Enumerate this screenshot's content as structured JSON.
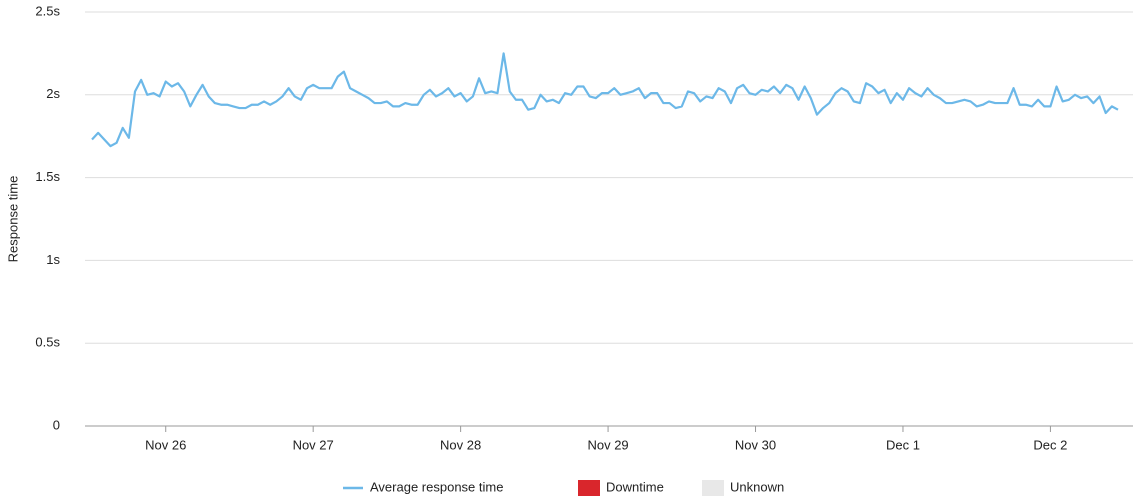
{
  "chart_data": {
    "type": "line",
    "y_label": "Response time",
    "categories": [
      null,
      null,
      null,
      null,
      null,
      null,
      null,
      null,
      null,
      null,
      null,
      null,
      "Nov 26",
      null,
      null,
      null,
      null,
      null,
      null,
      null,
      null,
      null,
      null,
      null,
      null,
      null,
      null,
      null,
      null,
      null,
      null,
      null,
      null,
      null,
      null,
      null,
      "Nov 27",
      null,
      null,
      null,
      null,
      null,
      null,
      null,
      null,
      null,
      null,
      null,
      null,
      null,
      null,
      null,
      null,
      null,
      null,
      null,
      null,
      null,
      null,
      null,
      "Nov 28",
      null,
      null,
      null,
      null,
      null,
      null,
      null,
      null,
      null,
      null,
      null,
      null,
      null,
      null,
      null,
      null,
      null,
      null,
      null,
      null,
      null,
      null,
      null,
      "Nov 29",
      null,
      null,
      null,
      null,
      null,
      null,
      null,
      null,
      null,
      null,
      null,
      null,
      null,
      null,
      null,
      null,
      null,
      null,
      null,
      null,
      null,
      null,
      null,
      "Nov 30",
      null,
      null,
      null,
      null,
      null,
      null,
      null,
      null,
      null,
      null,
      null,
      null,
      null,
      null,
      null,
      null,
      null,
      null,
      null,
      null,
      null,
      null,
      null,
      "Dec 1",
      null,
      null,
      null,
      null,
      null,
      null,
      null,
      null,
      null,
      null,
      null,
      null,
      null,
      null,
      null,
      null,
      null,
      null,
      null,
      null,
      null,
      null,
      null,
      "Dec 2",
      null,
      null,
      null,
      null,
      null,
      null,
      null,
      null,
      null,
      null,
      null
    ],
    "series": [
      {
        "name": "Average response time",
        "color": "#6cb8e8",
        "values": [
          1.73,
          1.77,
          1.73,
          1.69,
          1.71,
          1.8,
          1.74,
          2.02,
          2.09,
          2.0,
          2.01,
          1.99,
          2.08,
          2.05,
          2.07,
          2.02,
          1.93,
          2.0,
          2.06,
          1.99,
          1.95,
          1.94,
          1.94,
          1.93,
          1.92,
          1.92,
          1.94,
          1.94,
          1.96,
          1.94,
          1.96,
          1.99,
          2.04,
          1.99,
          1.97,
          2.04,
          2.06,
          2.04,
          2.04,
          2.04,
          2.11,
          2.14,
          2.04,
          2.02,
          2.0,
          1.98,
          1.95,
          1.95,
          1.96,
          1.93,
          1.93,
          1.95,
          1.94,
          1.94,
          2.0,
          2.03,
          1.99,
          2.01,
          2.04,
          1.99,
          2.01,
          1.96,
          1.99,
          2.1,
          2.01,
          2.02,
          2.01,
          2.25,
          2.02,
          1.97,
          1.97,
          1.91,
          1.92,
          2.0,
          1.96,
          1.97,
          1.95,
          2.01,
          2.0,
          2.05,
          2.05,
          1.99,
          1.98,
          2.01,
          2.01,
          2.04,
          2.0,
          2.01,
          2.02,
          2.04,
          1.98,
          2.01,
          2.01,
          1.95,
          1.95,
          1.92,
          1.93,
          2.02,
          2.01,
          1.96,
          1.99,
          1.98,
          2.04,
          2.02,
          1.95,
          2.04,
          2.06,
          2.01,
          2.0,
          2.03,
          2.02,
          2.05,
          2.01,
          2.06,
          2.04,
          1.97,
          2.05,
          1.98,
          1.88,
          1.92,
          1.95,
          2.01,
          2.04,
          2.02,
          1.96,
          1.95,
          2.07,
          2.05,
          2.01,
          2.03,
          1.95,
          2.01,
          1.97,
          2.04,
          2.01,
          1.99,
          2.04,
          2.0,
          1.98,
          1.95,
          1.95,
          1.96,
          1.97,
          1.96,
          1.93,
          1.94,
          1.96,
          1.95,
          1.95,
          1.95,
          2.04,
          1.94,
          1.94,
          1.93,
          1.97,
          1.93,
          1.93,
          2.05,
          1.96,
          1.97,
          2.0,
          1.98,
          1.99,
          1.95,
          1.99,
          1.89,
          1.93,
          1.91
        ]
      }
    ],
    "legend_items": [
      {
        "name": "Downtime",
        "color": "#d9262c"
      },
      {
        "name": "Unknown",
        "color": "#e8e8e8"
      }
    ],
    "ylim": [
      0,
      2.5
    ],
    "yticks": [
      {
        "value": 0,
        "label": "0"
      },
      {
        "value": 0.5,
        "label": "0.5s"
      },
      {
        "value": 1,
        "label": "1s"
      },
      {
        "value": 1.5,
        "label": "1.5s"
      },
      {
        "value": 2,
        "label": "2s"
      },
      {
        "value": 2.5,
        "label": "2.5s"
      }
    ],
    "grid": true
  }
}
